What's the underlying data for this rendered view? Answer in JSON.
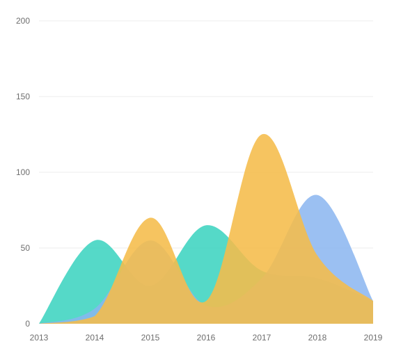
{
  "chart_data": {
    "type": "area",
    "x": [
      2013,
      2014,
      2015,
      2016,
      2017,
      2018,
      2019
    ],
    "x_tick_labels": [
      "2013",
      "2014",
      "2015",
      "2016",
      "2017",
      "2018",
      "2019"
    ],
    "y_tick_labels": [
      "0",
      "50",
      "100",
      "150",
      "200"
    ],
    "y_ticks": [
      0,
      50,
      100,
      150,
      200
    ],
    "ylim": [
      0,
      200
    ],
    "grid": true,
    "smooth": true,
    "series": [
      {
        "values": [
          0,
          55,
          25,
          65,
          35,
          30,
          15
        ],
        "color": "#3dd4c0",
        "opacity": 0.88
      },
      {
        "values": [
          0,
          10,
          55,
          12,
          30,
          85,
          15
        ],
        "color": "#8ab5f0",
        "opacity": 0.85
      },
      {
        "values": [
          0,
          5,
          70,
          15,
          125,
          45,
          15
        ],
        "color": "#f5bc4a",
        "opacity": 0.88
      }
    ]
  }
}
